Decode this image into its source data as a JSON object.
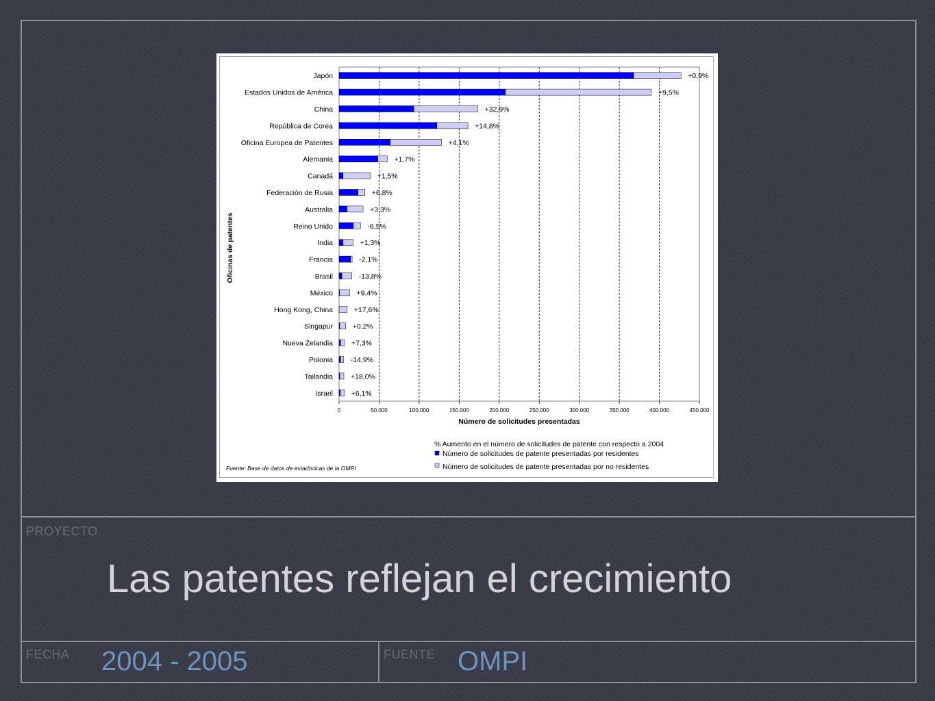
{
  "slide": {
    "proyecto_label": "PROYECTO",
    "title": "Las patentes reflejan el crecimiento",
    "fecha_label": "FECHA",
    "fecha_value": "2004 - 2005",
    "fuente_label": "FUENTE",
    "fuente_value": "OMPI"
  },
  "chart_data": {
    "type": "bar",
    "orientation": "horizontal",
    "stacked": true,
    "title": "",
    "xlabel": "Número de solicitudes presentadas",
    "ylabel": "Oficinas de patentes",
    "xlim": [
      0,
      450000
    ],
    "x_ticks": [
      "0",
      "50.000",
      "100.000",
      "150.000",
      "200.000",
      "250.000",
      "300.000",
      "350.000",
      "400.000",
      "450.000"
    ],
    "grid": "vertical dashed",
    "categories": [
      "Japón",
      "Estados Unidos de América",
      "China",
      "República de Corea",
      "Oficina Europea de Patentes",
      "Alemania",
      "Canadá",
      "Federación de Rusia",
      "Australia",
      "Reino Unido",
      "India",
      "Francia",
      "Brasil",
      "México",
      "Hong Kong, China",
      "Singapur",
      "Nueva Zelandia",
      "Polonia",
      "Tailandia",
      "Israel"
    ],
    "series": [
      {
        "name": "Número de solicitudes de patente presentadas por residentes",
        "color": "#0000ff",
        "values": [
          367960,
          207867,
          93485,
          122188,
          64000,
          48367,
          5000,
          23644,
          10000,
          17833,
          5000,
          14327,
          3500,
          600,
          100,
          800,
          1800,
          2000,
          900,
          1500
        ]
      },
      {
        "name": "Número de solicitudes de patente presentadas por no residentes",
        "color": "#cdcdf5",
        "values": [
          59118,
          182150,
          79842,
          38733,
          64000,
          11855,
          34000,
          8610,
          20000,
          9000,
          12500,
          2000,
          12500,
          12700,
          10000,
          7500,
          5000,
          3800,
          5100,
          5000
        ]
      }
    ],
    "annotations": [
      "+0,9%",
      "+9,5%",
      "+32,9%",
      "+14,8%",
      "+4,1%",
      "+1,7%",
      "+1,5%",
      "+6,8%",
      "+3,3%",
      "-6,5%",
      "+1,3%",
      "-2,1%",
      "-13,8%",
      "+9,4%",
      "+17,6%",
      "+0,2%",
      "+7,3%",
      "-14,9%",
      "+18,0%",
      "+6,1%"
    ],
    "legend_title": "% Aumento en el número de solicitudes de patente con respecto a  2004",
    "legend_placement": "bottom-right",
    "source": "Fuente: Base de datos de estadísticas de la OMPI"
  }
}
